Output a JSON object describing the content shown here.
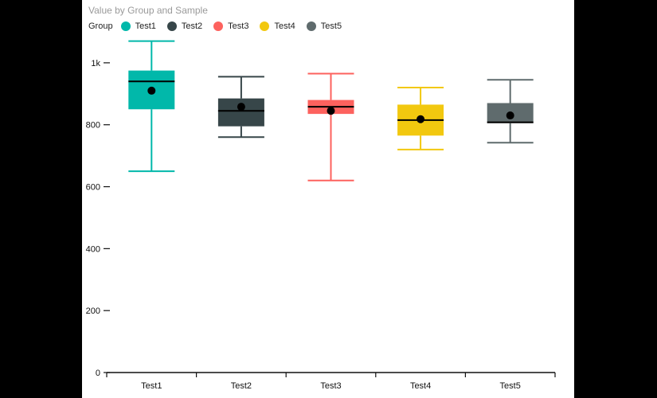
{
  "title": "Value by Group and Sample",
  "legend": {
    "title": "Group",
    "items": [
      {
        "label": "Test1",
        "color": "#01B8AA"
      },
      {
        "label": "Test2",
        "color": "#374649"
      },
      {
        "label": "Test3",
        "color": "#FD625E"
      },
      {
        "label": "Test4",
        "color": "#F2C80F"
      },
      {
        "label": "Test5",
        "color": "#5F6B6D"
      }
    ]
  },
  "chart_data": {
    "type": "box",
    "title": "Value by Group and Sample",
    "xlabel": "",
    "ylabel": "",
    "ylim": [
      0,
      1100
    ],
    "y_ticks": [
      {
        "value": 0,
        "label": "0"
      },
      {
        "value": 200,
        "label": "200"
      },
      {
        "value": 400,
        "label": "400"
      },
      {
        "value": 600,
        "label": "600"
      },
      {
        "value": 800,
        "label": "800"
      },
      {
        "value": 1000,
        "label": "1k"
      }
    ],
    "grid": false,
    "legend_position": "top-left",
    "categories": [
      "Test1",
      "Test2",
      "Test3",
      "Test4",
      "Test5"
    ],
    "boxes": [
      {
        "category": "Test1",
        "min": 650,
        "q1": 850,
        "median": 940,
        "q3": 975,
        "max": 1070,
        "mean": 910,
        "color": "#01B8AA"
      },
      {
        "category": "Test2",
        "min": 760,
        "q1": 795,
        "median": 845,
        "q3": 885,
        "max": 955,
        "mean": 858,
        "color": "#374649"
      },
      {
        "category": "Test3",
        "min": 620,
        "q1": 835,
        "median": 858,
        "q3": 880,
        "max": 965,
        "mean": 845,
        "color": "#FD625E"
      },
      {
        "category": "Test4",
        "min": 720,
        "q1": 765,
        "median": 815,
        "q3": 865,
        "max": 920,
        "mean": 818,
        "color": "#F2C80F"
      },
      {
        "category": "Test5",
        "min": 742,
        "q1": 805,
        "median": 808,
        "q3": 870,
        "max": 945,
        "mean": 830,
        "color": "#5F6B6D"
      }
    ]
  }
}
